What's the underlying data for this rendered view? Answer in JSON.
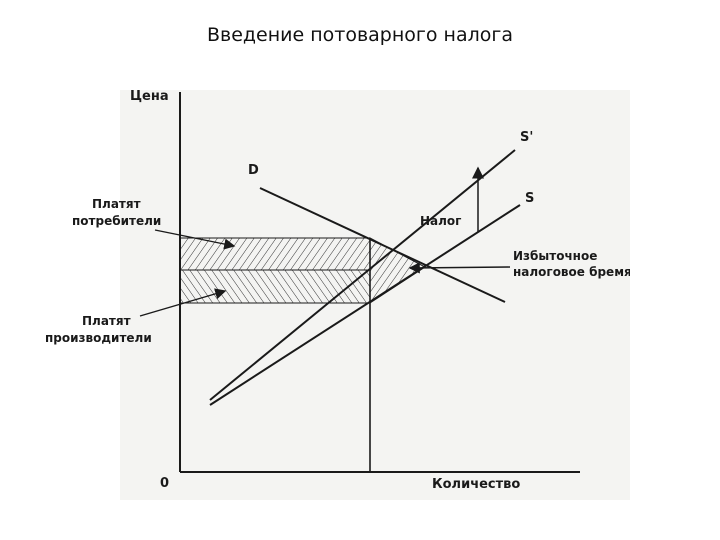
{
  "slide": {
    "title": "Введение потоварного налога"
  },
  "diagram": {
    "y_axis_label": "Цена",
    "x_axis_label": "Количество",
    "origin_label": "0",
    "curves": {
      "demand": "D",
      "supply": "S",
      "supply_taxed": "S'"
    },
    "annotations": {
      "tax": "Налог",
      "consumers_line1": "Платят",
      "consumers_line2": "потребители",
      "producers_line1": "Платят",
      "producers_line2": "производители",
      "deadweight_line1": "Избыточное",
      "deadweight_line2": "налоговое бремя"
    },
    "colors": {
      "ink": "#1a1a1a",
      "hatch": "#333333",
      "paper": "#f4f4f2"
    }
  }
}
